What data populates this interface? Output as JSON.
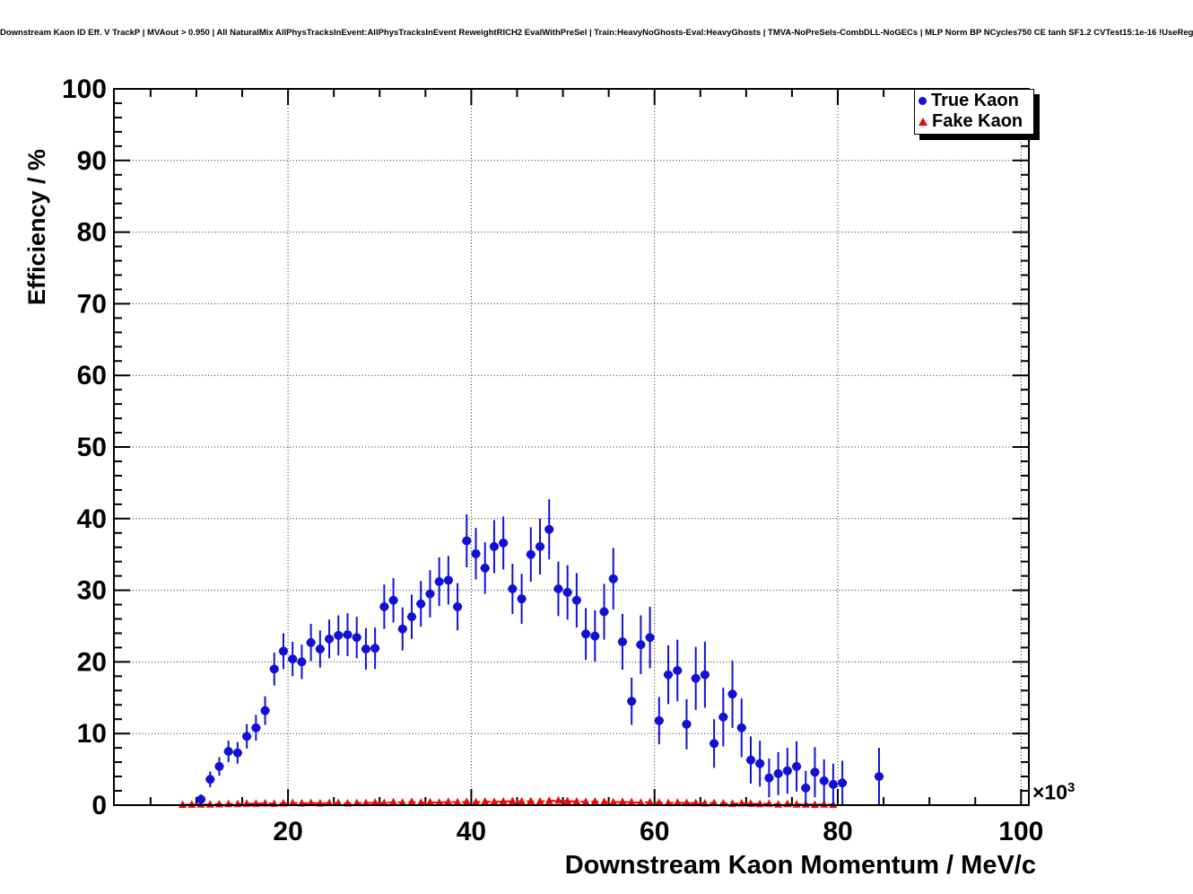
{
  "header": {
    "title": "Downstream Kaon ID Eff. V TrackP | MVAout > 0.950 | All NaturalMix AllPhysTracksInEvent:AllPhysTracksInEvent ReweightRICH2 EvalWithPreSel | Train:HeavyNoGhosts-Eval:HeavyGhosts | TMVA-NoPreSels-CombDLL-NoGECs | MLP Norm BP NCycles750 CE tanh SF1.2 CVTest15:1e-16 !UseReg"
  },
  "chart_data": {
    "type": "scatter",
    "title": "Downstream Kaon ID Eff. V TrackP | MVAout > 0.950",
    "xlabel": "Downstream Kaon Momentum / MeV/c",
    "ylabel": "Efficiency / %",
    "grid": "dotted-on-major-divisions",
    "x_axis": {
      "min": 1.0,
      "max": 100.85,
      "unit_multiplier": "1e3",
      "multiplier_base": "×10",
      "multiplier_exp": "3",
      "major_ticks": [
        20,
        40,
        60,
        80,
        100
      ],
      "minor_step": 5
    },
    "y_axis": {
      "min": 0,
      "max": 100,
      "major_ticks": [
        0,
        10,
        20,
        30,
        40,
        50,
        60,
        70,
        80,
        90,
        100
      ],
      "minor_step": 2
    },
    "legend": {
      "position": "top-right",
      "entries": [
        {
          "label": "True Kaon",
          "marker": "circle",
          "color": "#1111d6"
        },
        {
          "label": "Fake Kaon",
          "marker": "triangle",
          "color": "#ee0606"
        }
      ]
    },
    "series": [
      {
        "name": "True Kaon",
        "marker": "circle",
        "color": "#1111d6",
        "error_bars": true,
        "x_bin_halfwidth": 0.5,
        "points": [
          [
            10.5,
            0.8,
            0.7
          ],
          [
            11.5,
            3.6,
            1.1
          ],
          [
            12.5,
            5.4,
            1.3
          ],
          [
            13.5,
            7.5,
            1.5
          ],
          [
            14.5,
            7.3,
            1.5
          ],
          [
            15.5,
            9.6,
            1.7
          ],
          [
            16.5,
            10.8,
            1.8
          ],
          [
            17.5,
            13.2,
            2.0
          ],
          [
            18.5,
            19.0,
            2.3
          ],
          [
            19.5,
            21.5,
            2.5
          ],
          [
            20.5,
            20.4,
            2.4
          ],
          [
            21.5,
            20.0,
            2.4
          ],
          [
            22.5,
            22.7,
            2.6
          ],
          [
            23.5,
            21.8,
            2.6
          ],
          [
            24.5,
            23.2,
            2.7
          ],
          [
            25.5,
            23.7,
            2.8
          ],
          [
            26.5,
            23.8,
            3.0
          ],
          [
            27.5,
            23.4,
            2.9
          ],
          [
            28.5,
            21.8,
            2.9
          ],
          [
            29.5,
            21.9,
            2.9
          ],
          [
            30.5,
            27.7,
            3.1
          ],
          [
            31.5,
            28.6,
            3.1
          ],
          [
            32.5,
            24.6,
            3.0
          ],
          [
            33.5,
            26.3,
            3.1
          ],
          [
            34.5,
            28.1,
            3.2
          ],
          [
            35.5,
            29.5,
            3.3
          ],
          [
            36.5,
            31.2,
            3.4
          ],
          [
            37.5,
            31.4,
            3.4
          ],
          [
            38.5,
            27.7,
            3.3
          ],
          [
            39.5,
            36.9,
            3.7
          ],
          [
            40.5,
            35.1,
            3.6
          ],
          [
            41.5,
            33.1,
            3.6
          ],
          [
            42.5,
            36.1,
            3.7
          ],
          [
            43.5,
            36.6,
            3.7
          ],
          [
            44.5,
            30.2,
            3.5
          ],
          [
            45.5,
            28.8,
            3.5
          ],
          [
            46.5,
            35.0,
            3.8
          ],
          [
            47.5,
            36.1,
            3.9
          ],
          [
            48.5,
            38.5,
            4.2
          ],
          [
            49.5,
            30.2,
            3.8
          ],
          [
            50.5,
            29.7,
            3.8
          ],
          [
            51.5,
            28.6,
            3.8
          ],
          [
            52.5,
            23.9,
            3.6
          ],
          [
            53.5,
            23.6,
            3.6
          ],
          [
            54.5,
            27.0,
            3.9
          ],
          [
            55.5,
            31.6,
            4.3
          ],
          [
            56.5,
            22.8,
            3.9
          ],
          [
            57.5,
            14.5,
            3.3
          ],
          [
            58.5,
            22.4,
            4.1
          ],
          [
            59.5,
            23.4,
            4.3
          ],
          [
            60.5,
            11.8,
            3.3
          ],
          [
            61.5,
            18.2,
            4.1
          ],
          [
            62.5,
            18.8,
            4.3
          ],
          [
            63.5,
            11.3,
            3.5
          ],
          [
            64.5,
            17.7,
            4.4
          ],
          [
            65.5,
            18.2,
            4.6
          ],
          [
            66.5,
            8.6,
            3.4
          ],
          [
            67.5,
            12.3,
            4.1
          ],
          [
            68.5,
            15.5,
            4.7
          ],
          [
            69.5,
            10.8,
            4.1
          ],
          [
            70.5,
            6.3,
            3.3
          ],
          [
            71.5,
            5.8,
            3.2
          ],
          [
            72.5,
            3.8,
            2.7
          ],
          [
            73.5,
            4.4,
            3.0
          ],
          [
            74.5,
            4.8,
            3.2
          ],
          [
            75.5,
            5.4,
            3.5
          ],
          [
            76.5,
            2.4,
            2.4
          ],
          [
            77.5,
            4.6,
            3.5
          ],
          [
            78.5,
            3.4,
            3.0
          ],
          [
            79.5,
            2.9,
            2.9
          ],
          [
            80.5,
            3.1,
            3.1
          ],
          [
            84.5,
            4.0,
            4.0
          ]
        ]
      },
      {
        "name": "Fake Kaon",
        "marker": "triangle",
        "color": "#ee0606",
        "line": "dashed",
        "points": [
          [
            8.5,
            0.05
          ],
          [
            9.5,
            0.08
          ],
          [
            10.5,
            0.1
          ],
          [
            11.5,
            0.1
          ],
          [
            12.5,
            0.12
          ],
          [
            13.5,
            0.15
          ],
          [
            14.5,
            0.15
          ],
          [
            15.5,
            0.2
          ],
          [
            16.5,
            0.2
          ],
          [
            17.5,
            0.25
          ],
          [
            18.5,
            0.2
          ],
          [
            19.5,
            0.25
          ],
          [
            20.5,
            0.3
          ],
          [
            21.5,
            0.25
          ],
          [
            22.5,
            0.3
          ],
          [
            23.5,
            0.25
          ],
          [
            24.5,
            0.3
          ],
          [
            25.5,
            0.3
          ],
          [
            26.5,
            0.25
          ],
          [
            27.5,
            0.3
          ],
          [
            28.5,
            0.3
          ],
          [
            29.5,
            0.35
          ],
          [
            30.5,
            0.3
          ],
          [
            31.5,
            0.4
          ],
          [
            32.5,
            0.35
          ],
          [
            33.5,
            0.45
          ],
          [
            34.5,
            0.35
          ],
          [
            35.5,
            0.4
          ],
          [
            36.5,
            0.35
          ],
          [
            37.5,
            0.45
          ],
          [
            38.5,
            0.4
          ],
          [
            39.5,
            0.45
          ],
          [
            40.5,
            0.4
          ],
          [
            41.5,
            0.5
          ],
          [
            42.5,
            0.45
          ],
          [
            43.5,
            0.5
          ],
          [
            44.5,
            0.55
          ],
          [
            45.5,
            0.5
          ],
          [
            46.5,
            0.55
          ],
          [
            47.5,
            0.5
          ],
          [
            48.5,
            0.6
          ],
          [
            49.5,
            0.65
          ],
          [
            50.5,
            0.55
          ],
          [
            51.5,
            0.5
          ],
          [
            52.5,
            0.45
          ],
          [
            53.5,
            0.5
          ],
          [
            54.5,
            0.45
          ],
          [
            55.5,
            0.4
          ],
          [
            56.5,
            0.45
          ],
          [
            57.5,
            0.4
          ],
          [
            58.5,
            0.35
          ],
          [
            59.5,
            0.4
          ],
          [
            60.5,
            0.35
          ],
          [
            61.5,
            0.3
          ],
          [
            62.5,
            0.35
          ],
          [
            63.5,
            0.3
          ],
          [
            64.5,
            0.3
          ],
          [
            65.5,
            0.25
          ],
          [
            66.5,
            0.3
          ],
          [
            67.5,
            0.25
          ],
          [
            68.5,
            0.2
          ],
          [
            69.5,
            0.25
          ],
          [
            70.5,
            0.2
          ],
          [
            71.5,
            0.15
          ],
          [
            72.5,
            0.2
          ],
          [
            73.5,
            0.1
          ],
          [
            74.5,
            0.15
          ],
          [
            75.5,
            0.1
          ],
          [
            76.5,
            0.1
          ],
          [
            77.5,
            0.05
          ],
          [
            78.5,
            0.1
          ],
          [
            79.5,
            0.05
          ]
        ]
      }
    ]
  }
}
